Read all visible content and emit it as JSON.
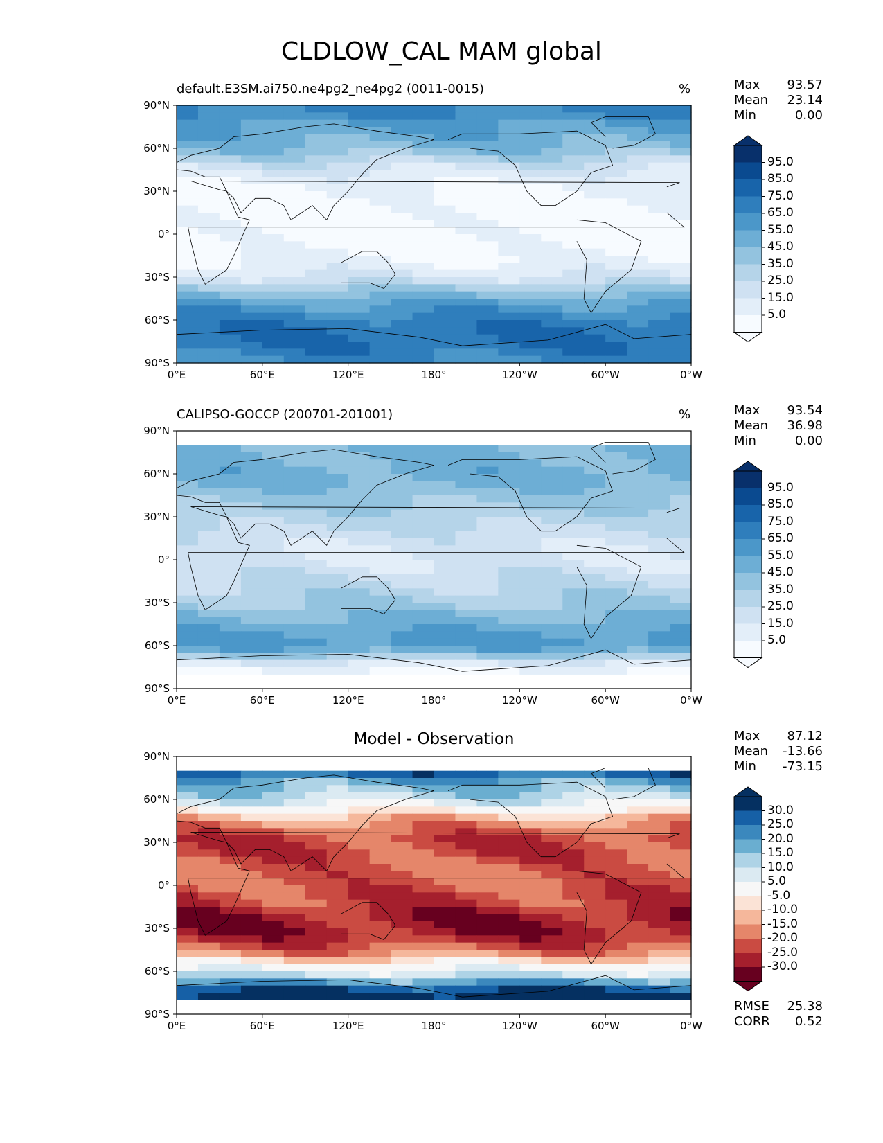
{
  "figure_title": "CLDLOW_CAL MAM global",
  "lat_ticks": [
    "90°N",
    "60°N",
    "30°N",
    "0°",
    "30°S",
    "60°S",
    "90°S"
  ],
  "lon_ticks": [
    "0°E",
    "60°E",
    "120°E",
    "180°",
    "120°W",
    "60°W",
    "0°W"
  ],
  "colors": {
    "blues": [
      "#f7fbff",
      "#e3eef9",
      "#cfe1f2",
      "#b5d4e9",
      "#93c3df",
      "#6daed5",
      "#4b97c9",
      "#2f7ebc",
      "#1864aa",
      "#0a4a90",
      "#08306b"
    ],
    "diverging": [
      "#67001f",
      "#a51f2d",
      "#ca4b42",
      "#e5866a",
      "#f5b79b",
      "#fbe3d6",
      "#f7f7f7",
      "#dbeaf2",
      "#aed3e6",
      "#6aaed0",
      "#3b88bd",
      "#1660a6",
      "#053061"
    ]
  },
  "chart_data": [
    {
      "type": "heatmap",
      "title": "default.E3SM.ai750.ne4pg2_ne4pg2 (0011-0015)",
      "units": "%",
      "stats": {
        "max_label": "Max",
        "max": "93.57",
        "mean_label": "Mean",
        "mean": "23.14",
        "min_label": "Min",
        "min": "0.00"
      },
      "colorbar_ticks": [
        "95.0",
        "85.0",
        "75.0",
        "65.0",
        "55.0",
        "45.0",
        "35.0",
        "25.0",
        "15.0",
        "5.0"
      ],
      "colorbar_extend": "both",
      "zonal_profile_lat": [
        90,
        75,
        60,
        45,
        30,
        15,
        0,
        -15,
        -30,
        -45,
        -60,
        -75,
        -90
      ],
      "zonal_profile_value": [
        75,
        60,
        50,
        20,
        8,
        5,
        5,
        8,
        20,
        55,
        75,
        80,
        70
      ]
    },
    {
      "type": "heatmap",
      "title": "CALIPSO-GOCCP (200701-201001)",
      "units": "%",
      "stats": {
        "max_label": "Max",
        "max": "93.54",
        "mean_label": "Mean",
        "mean": "36.98",
        "min_label": "Min",
        "min": "0.00"
      },
      "colorbar_ticks": [
        "95.0",
        "85.0",
        "75.0",
        "65.0",
        "55.0",
        "45.0",
        "35.0",
        "25.0",
        "15.0",
        "5.0"
      ],
      "colorbar_extend": "both",
      "zonal_profile_lat": [
        82,
        75,
        60,
        45,
        30,
        15,
        0,
        -15,
        -30,
        -45,
        -60,
        -75,
        -82
      ],
      "zonal_profile_value": [
        55,
        50,
        55,
        45,
        35,
        25,
        20,
        30,
        40,
        55,
        65,
        10,
        5
      ]
    },
    {
      "type": "heatmap",
      "title": "Model - Observation",
      "units": "",
      "stats": {
        "max_label": "Max",
        "max": "87.12",
        "mean_label": "Mean",
        "mean": "-13.66",
        "min_label": "Min",
        "min": "-73.15"
      },
      "colorbar_ticks": [
        "30.0",
        "25.0",
        "20.0",
        "15.0",
        "10.0",
        "5.0",
        "-5.0",
        "-10.0",
        "-15.0",
        "-20.0",
        "-25.0",
        "-30.0"
      ],
      "colorbar_extend": "both",
      "metrics": {
        "rmse_label": "RMSE",
        "rmse": "25.38",
        "corr_label": "CORR",
        "corr": "0.52"
      },
      "zonal_profile_lat": [
        82,
        75,
        60,
        45,
        30,
        15,
        0,
        -15,
        -30,
        -45,
        -60,
        -75,
        -82
      ],
      "zonal_profile_value": [
        35,
        20,
        10,
        -15,
        -25,
        -20,
        -20,
        -25,
        -30,
        -20,
        5,
        35,
        35
      ]
    }
  ]
}
